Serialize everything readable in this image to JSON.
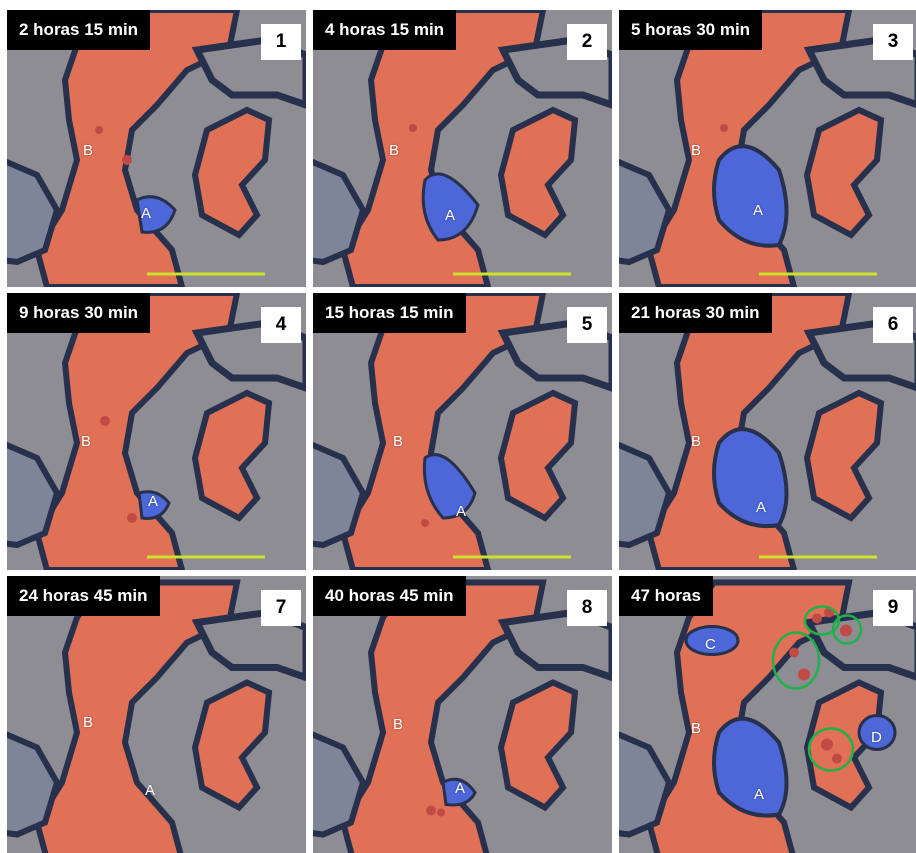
{
  "colors": {
    "background_grey": "#8d8d93",
    "red_fluid": "#e07056",
    "dark_outline": "#27304c",
    "blue_fluid": "#4d67d8",
    "scale_bar": "#cfe22b",
    "circle_marker": "#1fb14a"
  },
  "panels": [
    {
      "time": "2 horas 15 min",
      "number": "1",
      "labels": {
        "a": "A",
        "b": "B"
      }
    },
    {
      "time": "4 horas 15 min",
      "number": "2",
      "labels": {
        "a": "A",
        "b": "B"
      }
    },
    {
      "time": "5 horas 30 min",
      "number": "3",
      "labels": {
        "a": "A",
        "b": "B"
      }
    },
    {
      "time": "9 horas 30 min",
      "number": "4",
      "labels": {
        "a": "A",
        "b": "B"
      }
    },
    {
      "time": "15 horas 15 min",
      "number": "5",
      "labels": {
        "a": "A",
        "b": "B"
      }
    },
    {
      "time": "21 horas 30 min",
      "number": "6",
      "labels": {
        "a": "A",
        "b": "B"
      }
    },
    {
      "time": "24 horas 45 min",
      "number": "7",
      "labels": {
        "a": "A",
        "b": "B"
      }
    },
    {
      "time": "40 horas 45 min",
      "number": "8",
      "labels": {
        "a": "A",
        "b": "B"
      }
    },
    {
      "time": "47 horas",
      "number": "9",
      "labels": {
        "a": "A",
        "b": "B",
        "c": "C",
        "d": "D"
      }
    }
  ]
}
